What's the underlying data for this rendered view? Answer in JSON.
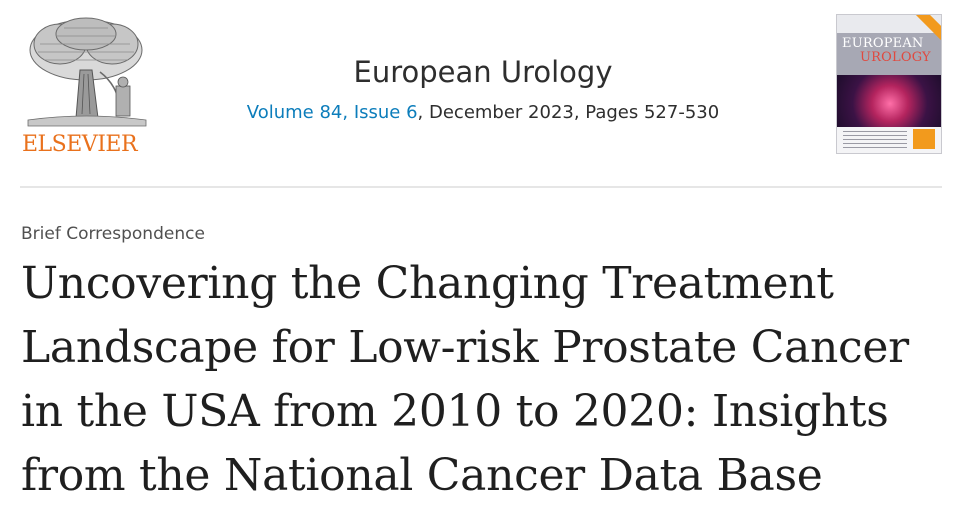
{
  "publisher": {
    "logo_text": "ELSEVIER",
    "logo_color": "#e9711c"
  },
  "journal": {
    "title": "European Urology",
    "volume_issue_link": "Volume 84, Issue 6",
    "date_pages": ", December 2023, Pages 527-530",
    "link_color": "#0c7dbb"
  },
  "cover": {
    "title_line1": "EUROPEAN",
    "title_line2": "UROLOGY"
  },
  "article": {
    "type": "Brief Correspondence",
    "title_lines": [
      "Uncovering the Changing Treatment",
      "Landscape for Low-risk Prostate Cancer",
      "in the USA from 2010 to 2020: Insights",
      "from the National Cancer Data Base"
    ]
  },
  "icons": {
    "publisher_logo": "elsevier-tree-logo",
    "cover": "journal-cover-thumbnail"
  }
}
